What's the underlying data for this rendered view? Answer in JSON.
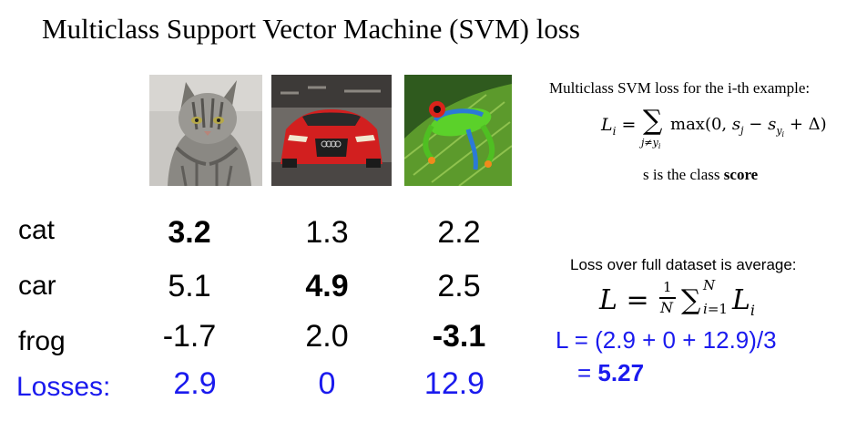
{
  "slide": {
    "title": "Multiclass Support Vector Machine (SVM) loss"
  },
  "images": [
    {
      "icon": "cat-photo-icon"
    },
    {
      "icon": "red-car-photo-icon"
    },
    {
      "icon": "tree-frog-photo-icon"
    }
  ],
  "table": {
    "rows": [
      {
        "label": "cat",
        "scores": [
          "3.2",
          "1.3",
          "2.2"
        ]
      },
      {
        "label": "car",
        "scores": [
          "5.1",
          "4.9",
          "2.5"
        ]
      },
      {
        "label": "frog",
        "scores": [
          "-1.7",
          "2.0",
          "-3.1"
        ]
      }
    ],
    "losses_label": "Losses:",
    "losses": [
      "2.9",
      "0",
      "12.9"
    ]
  },
  "right_panel": {
    "example_heading": "Multiclass SVM loss for the i-th example:",
    "note_prefix": "s is the class ",
    "note_bold": "score",
    "dataset_heading": "Loss over full dataset is average:",
    "computation_line1": "L = (2.9 + 0 + 12.9)/3",
    "computation_eq": "= ",
    "computation_result": "5.27"
  },
  "colors": {
    "accent_blue": "#1a1aee",
    "text": "#000000"
  }
}
